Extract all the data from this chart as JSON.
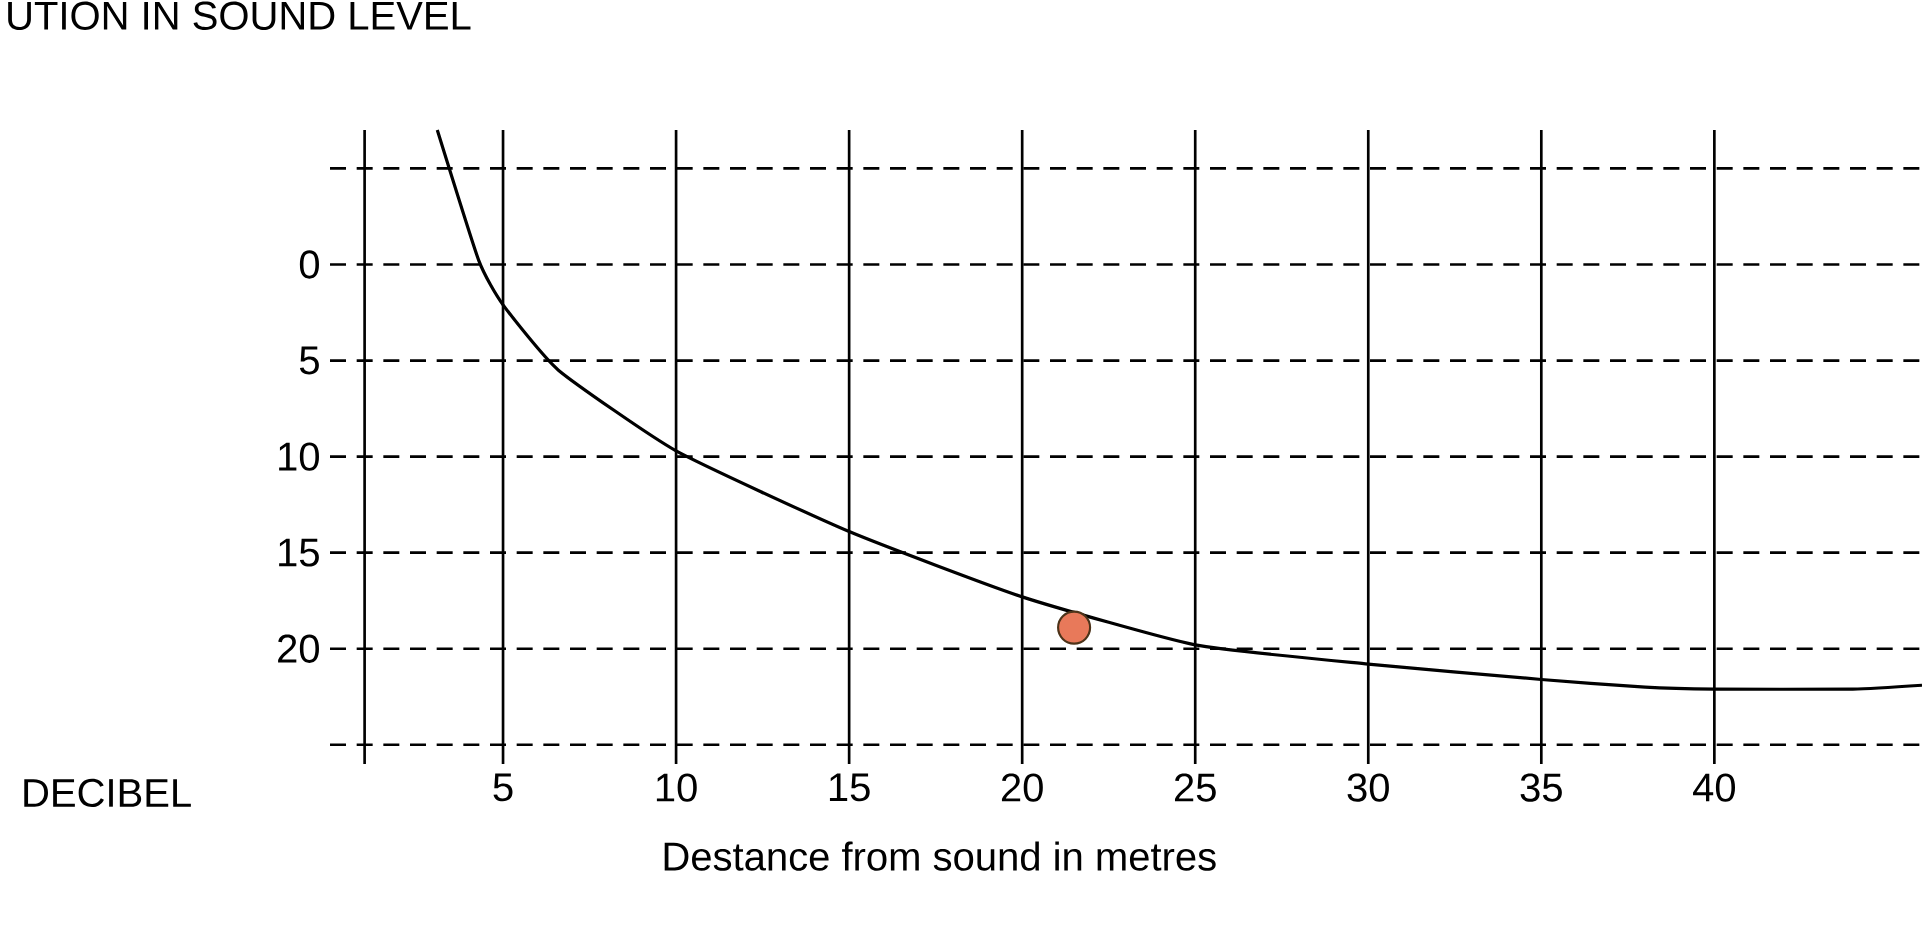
{
  "chart_data": {
    "type": "line",
    "title": "UTION IN SOUND LEVEL",
    "xlabel": "Destance from sound in metres",
    "ylabel": "DECIBEL",
    "xlim": [
      0,
      46
    ],
    "ylim": [
      26,
      -7
    ],
    "xticks": [
      {
        "value": 1,
        "label": null
      },
      5,
      10,
      15,
      20,
      25,
      30,
      35,
      40
    ],
    "yticks": [
      {
        "value": -5,
        "label": null
      },
      0,
      5,
      10,
      15,
      20,
      {
        "value": 25,
        "label": null
      }
    ],
    "grid": true,
    "series": [
      {
        "type": "line",
        "color": "#000000",
        "marker": "none",
        "line_style": "solid",
        "x": [
          3.1,
          4.3,
          5,
          6.6,
          10,
          15,
          20,
          25,
          30,
          35,
          38,
          40,
          44,
          46
        ],
        "values": [
          -7.0,
          -0.2,
          2.1,
          5.5,
          9.7,
          13.9,
          17.3,
          19.8,
          20.8,
          21.6,
          22.0,
          22.1,
          22.1,
          21.9
        ]
      },
      {
        "type": "scatter",
        "color": "#e8795a",
        "marker": "circle",
        "x": [
          21.5
        ],
        "values": [
          18.9
        ]
      }
    ]
  }
}
